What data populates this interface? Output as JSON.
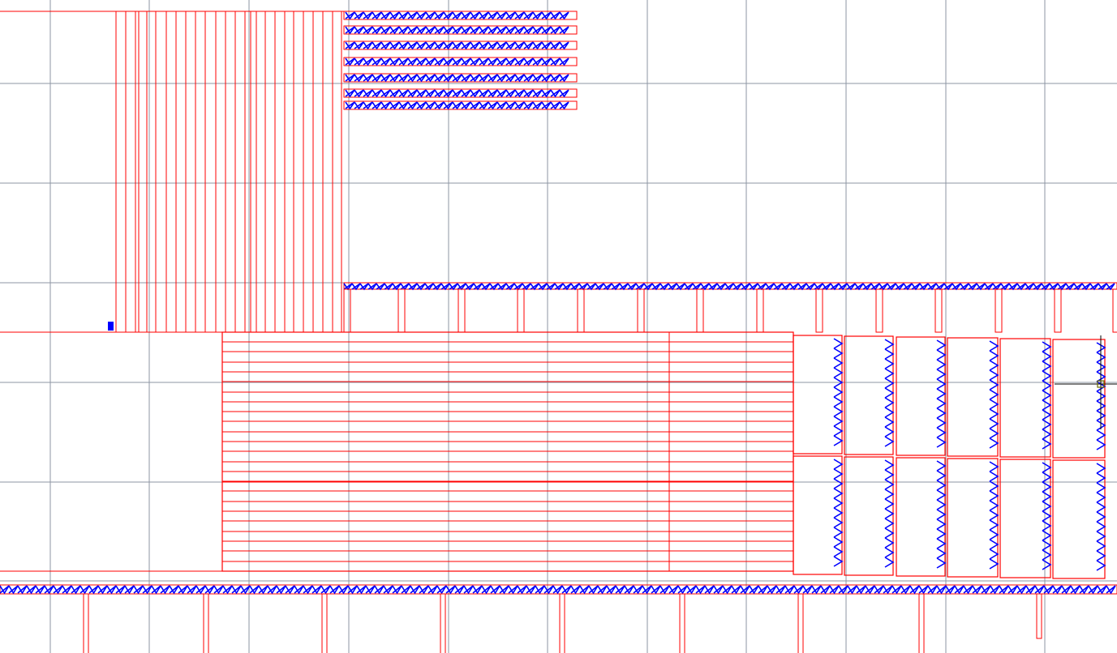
{
  "view": {
    "background_color": "#ffffff",
    "grid_color": "#8e95a3",
    "member_color": "#ff0000",
    "truss_color": "#0000ff",
    "cursor_color": "#000000",
    "grid_visible": true
  },
  "objects": {
    "grid": "drawing-grid",
    "vertical_member_group": "vertical-member-group",
    "top_truss_stack": "top-truss-stack",
    "middle_truss_row": "middle-truss-row",
    "horizontal_member_group": "horizontal-member-group",
    "right_frame_bays": "right-frame-bays",
    "bottom_truss_row": "bottom-truss-row",
    "selection_marker": "selection-marker",
    "crosshair_cursor": "crosshair-cursor"
  }
}
